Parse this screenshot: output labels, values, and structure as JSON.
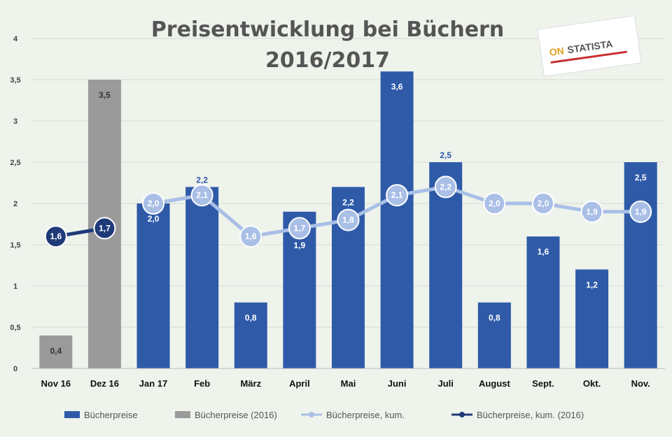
{
  "chart_data": {
    "type": "bar",
    "title_line1": "Preisentwicklung bei Büchern",
    "title_line2": "2016/2017",
    "xlabel": "",
    "ylabel": "",
    "ylim": [
      0,
      4
    ],
    "yticks": [
      "0",
      "0,5",
      "1",
      "1,5",
      "2",
      "2,5",
      "3",
      "3,5",
      "4"
    ],
    "grid": true,
    "legend_position": "bottom",
    "categories": [
      "Nov 16",
      "Dez 16",
      "Jan 17",
      "Feb",
      "März",
      "April",
      "Mai",
      "Juni",
      "Juli",
      "August",
      "Sept.",
      "Okt.",
      "Nov."
    ],
    "series": [
      {
        "name": "Bücherpreise",
        "kind": "bar",
        "color": "#2e5aa8",
        "values": [
          null,
          null,
          2.0,
          2.2,
          0.8,
          1.9,
          2.2,
          3.6,
          2.5,
          0.8,
          1.6,
          1.2,
          2.5
        ],
        "labels": [
          null,
          null,
          "2,0",
          "2,2",
          "0,8",
          "1,9",
          "2,2",
          "3,6",
          "2,5",
          "0,8",
          "1,6",
          "1,2",
          "2,5"
        ],
        "label_pos": [
          null,
          null,
          "inside",
          "top",
          "inside",
          "inside-low",
          "inside",
          "inside",
          "top",
          "inside",
          "inside",
          "inside",
          "inside"
        ]
      },
      {
        "name": "Bücherpreise (2016)",
        "kind": "bar",
        "color": "#9a9a9a",
        "values": [
          0.4,
          3.5,
          null,
          null,
          null,
          null,
          null,
          null,
          null,
          null,
          null,
          null,
          null
        ],
        "labels": [
          "0,4",
          "3,5",
          null,
          null,
          null,
          null,
          null,
          null,
          null,
          null,
          null,
          null,
          null
        ]
      },
      {
        "name": "Bücherpreise, kum.",
        "kind": "line",
        "color": "#a9bfe6",
        "values": [
          null,
          null,
          2.0,
          2.1,
          1.6,
          1.7,
          1.8,
          2.1,
          2.2,
          2.0,
          2.0,
          1.9,
          1.9
        ],
        "labels": [
          null,
          null,
          "2,0",
          "2,1",
          "1,6",
          "1,7",
          "1,8",
          "2,1",
          "2,2",
          "2,0",
          "2,0",
          "1,9",
          "1,9"
        ]
      },
      {
        "name": "Bücherpreise, kum. (2016)",
        "kind": "line",
        "color": "#1f3a78",
        "values": [
          1.6,
          1.7,
          null,
          null,
          null,
          null,
          null,
          null,
          null,
          null,
          null,
          null,
          null
        ],
        "labels": [
          "1,6",
          "1,7",
          null,
          null,
          null,
          null,
          null,
          null,
          null,
          null,
          null,
          null,
          null
        ]
      }
    ]
  },
  "legend": [
    {
      "label": "Bücherpreise",
      "kind": "bar",
      "color": "#2e5aa8"
    },
    {
      "label": "Bücherpreise (2016)",
      "kind": "bar",
      "color": "#9a9a9a"
    },
    {
      "label": "Bücherpreise, kum.",
      "kind": "line",
      "color": "#a9bfe6"
    },
    {
      "label": "Bücherpreise, kum. (2016)",
      "kind": "line",
      "color": "#1f3a78"
    }
  ],
  "logo": {
    "text_a": "ON",
    "text_b": "STATISTA",
    "colors": [
      "#e0a020",
      "#c83030",
      "#555555"
    ]
  }
}
